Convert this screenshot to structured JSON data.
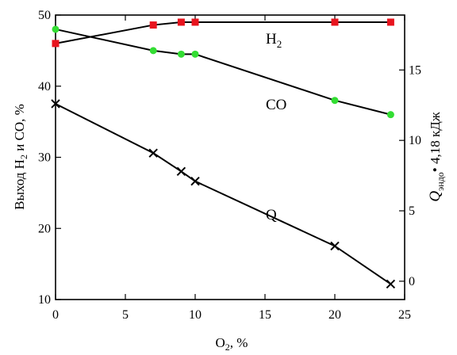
{
  "chart_data": {
    "type": "line",
    "xlabel": "O",
    "xlabel_sub": "2",
    "xlabel_suffix": ", %",
    "ylabel": "Выход H",
    "ylabel_sub": "2",
    "ylabel_suffix": " и CO, %",
    "y2label_q": "Q",
    "y2label_sub": "эндо",
    "y2label_suffix": "• 4,18 кДж",
    "xlim": [
      0,
      25
    ],
    "ylim": [
      10,
      50
    ],
    "y2lim": [
      -1.3,
      18.9
    ],
    "x_ticks": [
      0,
      5,
      10,
      15,
      20,
      25
    ],
    "y_ticks": [
      10,
      20,
      30,
      40,
      50
    ],
    "y2_ticks": [
      0,
      5,
      10,
      15
    ],
    "grid": false,
    "legend": "none",
    "series": [
      {
        "label": "H",
        "label_sub": "2",
        "axis": "left",
        "marker": "square",
        "color": "#e8141e",
        "x": [
          0,
          7,
          9,
          10,
          20,
          24
        ],
        "y": [
          46,
          48.6,
          49,
          49,
          49,
          49
        ]
      },
      {
        "label": "CO",
        "axis": "left",
        "marker": "circle",
        "color": "#33dd33",
        "x": [
          0,
          7,
          9,
          10,
          20,
          24
        ],
        "y": [
          48,
          45,
          44.5,
          44.5,
          38,
          36
        ]
      },
      {
        "label": "Q",
        "axis": "right",
        "marker": "cross",
        "color": "#000000",
        "x": [
          0,
          7,
          9,
          10,
          20,
          24
        ],
        "y": [
          12.6,
          9.1,
          7.8,
          7.1,
          2.5,
          -0.2
        ]
      }
    ]
  }
}
